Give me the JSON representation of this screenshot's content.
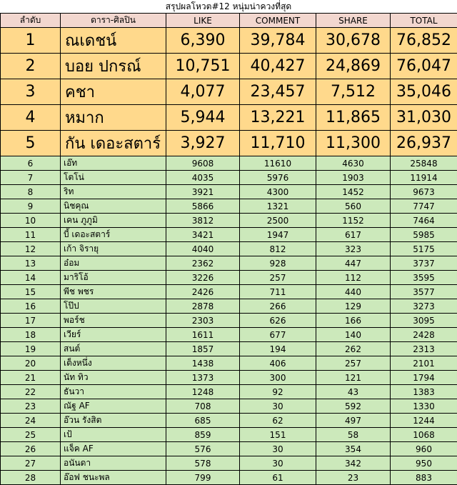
{
  "title": "สรุปผลโหวต#12 หนุ่มน่าควงที่สุด",
  "headers": [
    "ลำดับ",
    "ดารา-ศิลปิน",
    "LIKE",
    "COMMENT",
    "SHARE",
    "TOTAL"
  ],
  "top_rows": [
    {
      "rank": "1",
      "name": "ณเดชน์",
      "like": "6,390",
      "comment": "39,784",
      "share": "30,678",
      "total": "76,852"
    },
    {
      "rank": "2",
      "name": "บอย ปกรณ์",
      "like": "10,751",
      "comment": "40,427",
      "share": "24,869",
      "total": "76,047"
    },
    {
      "rank": "3",
      "name": "คชา",
      "like": "4,077",
      "comment": "23,457",
      "share": "7,512",
      "total": "35,046"
    },
    {
      "rank": "4",
      "name": "หมาก",
      "like": "5,944",
      "comment": "13,221",
      "share": "11,865",
      "total": "31,030"
    },
    {
      "rank": "5",
      "name": "กัน เดอะสตาร์",
      "like": "3,927",
      "comment": "11,710",
      "share": "11,300",
      "total": "26,937"
    }
  ],
  "rows": [
    {
      "rank": "6",
      "name": "เอ๊ท",
      "like": "9608",
      "comment": "11610",
      "share": "4630",
      "total": "25848"
    },
    {
      "rank": "7",
      "name": "โตโน่",
      "like": "4035",
      "comment": "5976",
      "share": "1903",
      "total": "11914"
    },
    {
      "rank": "8",
      "name": "ริท",
      "like": "3921",
      "comment": "4300",
      "share": "1452",
      "total": "9673"
    },
    {
      "rank": "9",
      "name": "นิชคุณ",
      "like": "5866",
      "comment": "1321",
      "share": "560",
      "total": "7747"
    },
    {
      "rank": "10",
      "name": "เคน ภูภูมิ",
      "like": "3812",
      "comment": "2500",
      "share": "1152",
      "total": "7464"
    },
    {
      "rank": "11",
      "name": "บี้ เดอะสตาร์",
      "like": "3421",
      "comment": "1947",
      "share": "617",
      "total": "5985"
    },
    {
      "rank": "12",
      "name": "เก้า จิรายุ",
      "like": "4040",
      "comment": "812",
      "share": "323",
      "total": "5175"
    },
    {
      "rank": "13",
      "name": "อ๋อม",
      "like": "2362",
      "comment": "928",
      "share": "447",
      "total": "3737"
    },
    {
      "rank": "14",
      "name": "มาริโอ้",
      "like": "3226",
      "comment": "257",
      "share": "112",
      "total": "3595"
    },
    {
      "rank": "15",
      "name": "พีช พชร",
      "like": "2426",
      "comment": "711",
      "share": "440",
      "total": "3577"
    },
    {
      "rank": "16",
      "name": "โป๊ป",
      "like": "2878",
      "comment": "266",
      "share": "129",
      "total": "3273"
    },
    {
      "rank": "17",
      "name": "พอร์ช",
      "like": "2303",
      "comment": "626",
      "share": "166",
      "total": "3095"
    },
    {
      "rank": "18",
      "name": "เวียร์",
      "like": "1611",
      "comment": "677",
      "share": "140",
      "total": "2428"
    },
    {
      "rank": "19",
      "name": "สนต์",
      "like": "1857",
      "comment": "194",
      "share": "262",
      "total": "2313"
    },
    {
      "rank": "20",
      "name": "เต็งหนึ่ง",
      "like": "1438",
      "comment": "406",
      "share": "257",
      "total": "2101"
    },
    {
      "rank": "21",
      "name": "นัท ทิว",
      "like": "1373",
      "comment": "300",
      "share": "121",
      "total": "1794"
    },
    {
      "rank": "22",
      "name": "ธันวา",
      "like": "1248",
      "comment": "92",
      "share": "43",
      "total": "1383"
    },
    {
      "rank": "23",
      "name": "ณัฐ AF",
      "like": "708",
      "comment": "30",
      "share": "592",
      "total": "1330"
    },
    {
      "rank": "24",
      "name": "อ๊วน รังสิต",
      "like": "685",
      "comment": "62",
      "share": "497",
      "total": "1244"
    },
    {
      "rank": "25",
      "name": "เป้",
      "like": "859",
      "comment": "151",
      "share": "58",
      "total": "1068"
    },
    {
      "rank": "26",
      "name": "แจ็ค AF",
      "like": "576",
      "comment": "30",
      "share": "354",
      "total": "960"
    },
    {
      "rank": "27",
      "name": "อนันดา",
      "like": "578",
      "comment": "30",
      "share": "342",
      "total": "950"
    },
    {
      "rank": "28",
      "name": "อ๊อฟ ชนะพล",
      "like": "799",
      "comment": "61",
      "share": "23",
      "total": "883"
    }
  ]
}
